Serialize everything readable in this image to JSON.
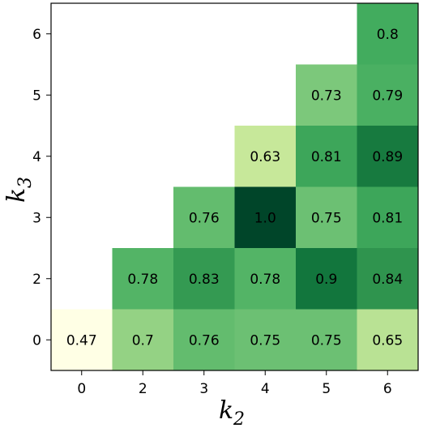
{
  "chart_data": {
    "type": "heatmap",
    "x_categories": [
      "0",
      "2",
      "3",
      "4",
      "5",
      "6"
    ],
    "y_categories": [
      "0",
      "2",
      "3",
      "4",
      "5",
      "6"
    ],
    "values": [
      [
        0.47,
        0.7,
        0.76,
        0.75,
        0.75,
        0.65
      ],
      [
        null,
        0.78,
        0.83,
        0.78,
        0.9,
        0.84
      ],
      [
        null,
        null,
        0.76,
        1.0,
        0.75,
        0.81
      ],
      [
        null,
        null,
        null,
        0.63,
        0.81,
        0.89
      ],
      [
        null,
        null,
        null,
        null,
        0.73,
        0.79
      ],
      [
        null,
        null,
        null,
        null,
        null,
        0.8
      ]
    ],
    "value_labels": [
      [
        "0.47",
        "0.7",
        "0.76",
        "0.75",
        "0.75",
        "0.65"
      ],
      [
        null,
        "0.78",
        "0.83",
        "0.78",
        "0.9",
        "0.84"
      ],
      [
        null,
        null,
        "0.76",
        "1.0",
        "0.75",
        "0.81"
      ],
      [
        null,
        null,
        null,
        "0.63",
        "0.81",
        "0.89"
      ],
      [
        null,
        null,
        null,
        null,
        "0.73",
        "0.79"
      ],
      [
        null,
        null,
        null,
        null,
        null,
        "0.8"
      ]
    ],
    "colormap": [
      "#ffffe5",
      "#f7fcb9",
      "#d9f0a3",
      "#addd8e",
      "#78c679",
      "#41ab5d",
      "#238443",
      "#006837",
      "#004529"
    ],
    "clim": [
      0.47,
      1.0
    ],
    "xlabel": "k",
    "xlabel_sub": "2",
    "ylabel": "k",
    "ylabel_sub": "3"
  }
}
